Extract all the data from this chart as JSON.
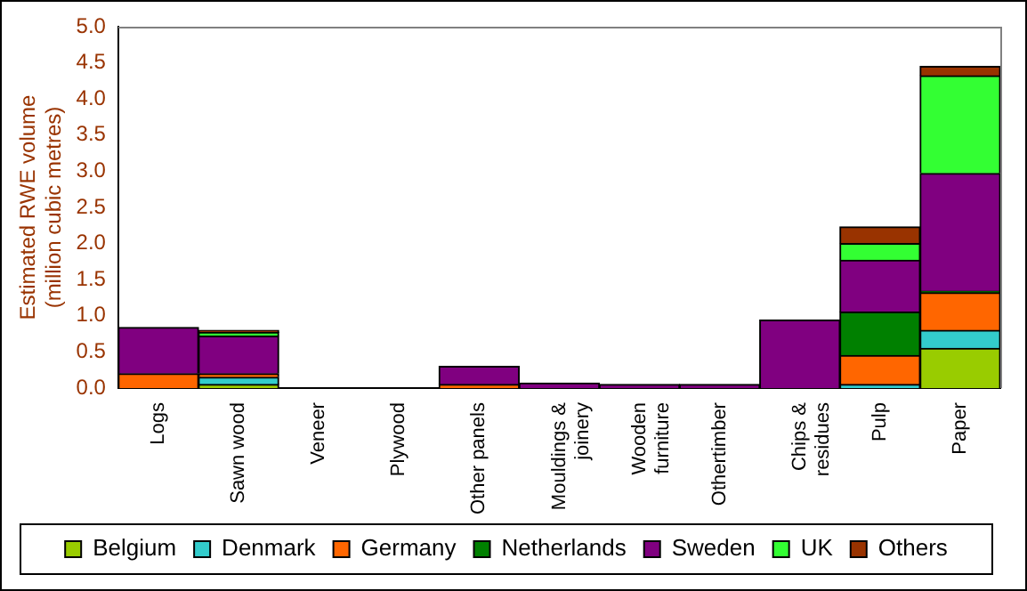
{
  "chart_data": {
    "type": "bar",
    "stacked": true,
    "ylabel": "Estimated RWE volume\n(million cubic metres)",
    "categories": [
      "Logs",
      "Sawn wood",
      "Veneer",
      "Plywood",
      "Other panels",
      "Mouldings & joinery",
      "Wooden furniture",
      "Othertimber",
      "Chips & residues",
      "Pulp",
      "Paper"
    ],
    "ylim": [
      0,
      5
    ],
    "yticks": [
      {
        "value": 0,
        "label": "0.0"
      },
      {
        "value": 0.5,
        "label": "0.5"
      },
      {
        "value": 1,
        "label": "1.0"
      },
      {
        "value": 1.5,
        "label": "1.5"
      },
      {
        "value": 2,
        "label": "2.0"
      },
      {
        "value": 2.5,
        "label": "2.5"
      },
      {
        "value": 3,
        "label": "3.0"
      },
      {
        "value": 3.5,
        "label": "3.5"
      },
      {
        "value": 4,
        "label": "4.0"
      },
      {
        "value": 4.5,
        "label": "4.5"
      },
      {
        "value": 5,
        "label": "5.0"
      }
    ],
    "grid": false,
    "legend": "bottom",
    "series": [
      {
        "name": "Belgium",
        "color": "#99cc00",
        "values": [
          0,
          0.05,
          0,
          0,
          0,
          0,
          0,
          0,
          0,
          0,
          0.55
        ]
      },
      {
        "name": "Denmark",
        "color": "#33cccc",
        "values": [
          0,
          0.1,
          0,
          0,
          0,
          0,
          0,
          0,
          0,
          0.05,
          0.25
        ]
      },
      {
        "name": "Germany",
        "color": "#ff6600",
        "values": [
          0.2,
          0.05,
          0,
          0,
          0.05,
          0,
          0,
          0,
          0,
          0.4,
          0.52
        ]
      },
      {
        "name": "Netherlands",
        "color": "#008000",
        "values": [
          0,
          0,
          0,
          0,
          0,
          0,
          0,
          0,
          0,
          0.6,
          0.02
        ]
      },
      {
        "name": "Sweden",
        "color": "#800080",
        "values": [
          0.64,
          0.52,
          0,
          0,
          0.25,
          0.07,
          0.05,
          0.05,
          0.94,
          0.72,
          1.63
        ]
      },
      {
        "name": "UK",
        "color": "#33ff33",
        "values": [
          0,
          0.05,
          0,
          0,
          0,
          0,
          0,
          0,
          0,
          0.23,
          1.35
        ]
      },
      {
        "name": "Others",
        "color": "#993300",
        "values": [
          0,
          0.03,
          0,
          0,
          0,
          0,
          0,
          0,
          0,
          0.23,
          0.13
        ]
      }
    ]
  }
}
